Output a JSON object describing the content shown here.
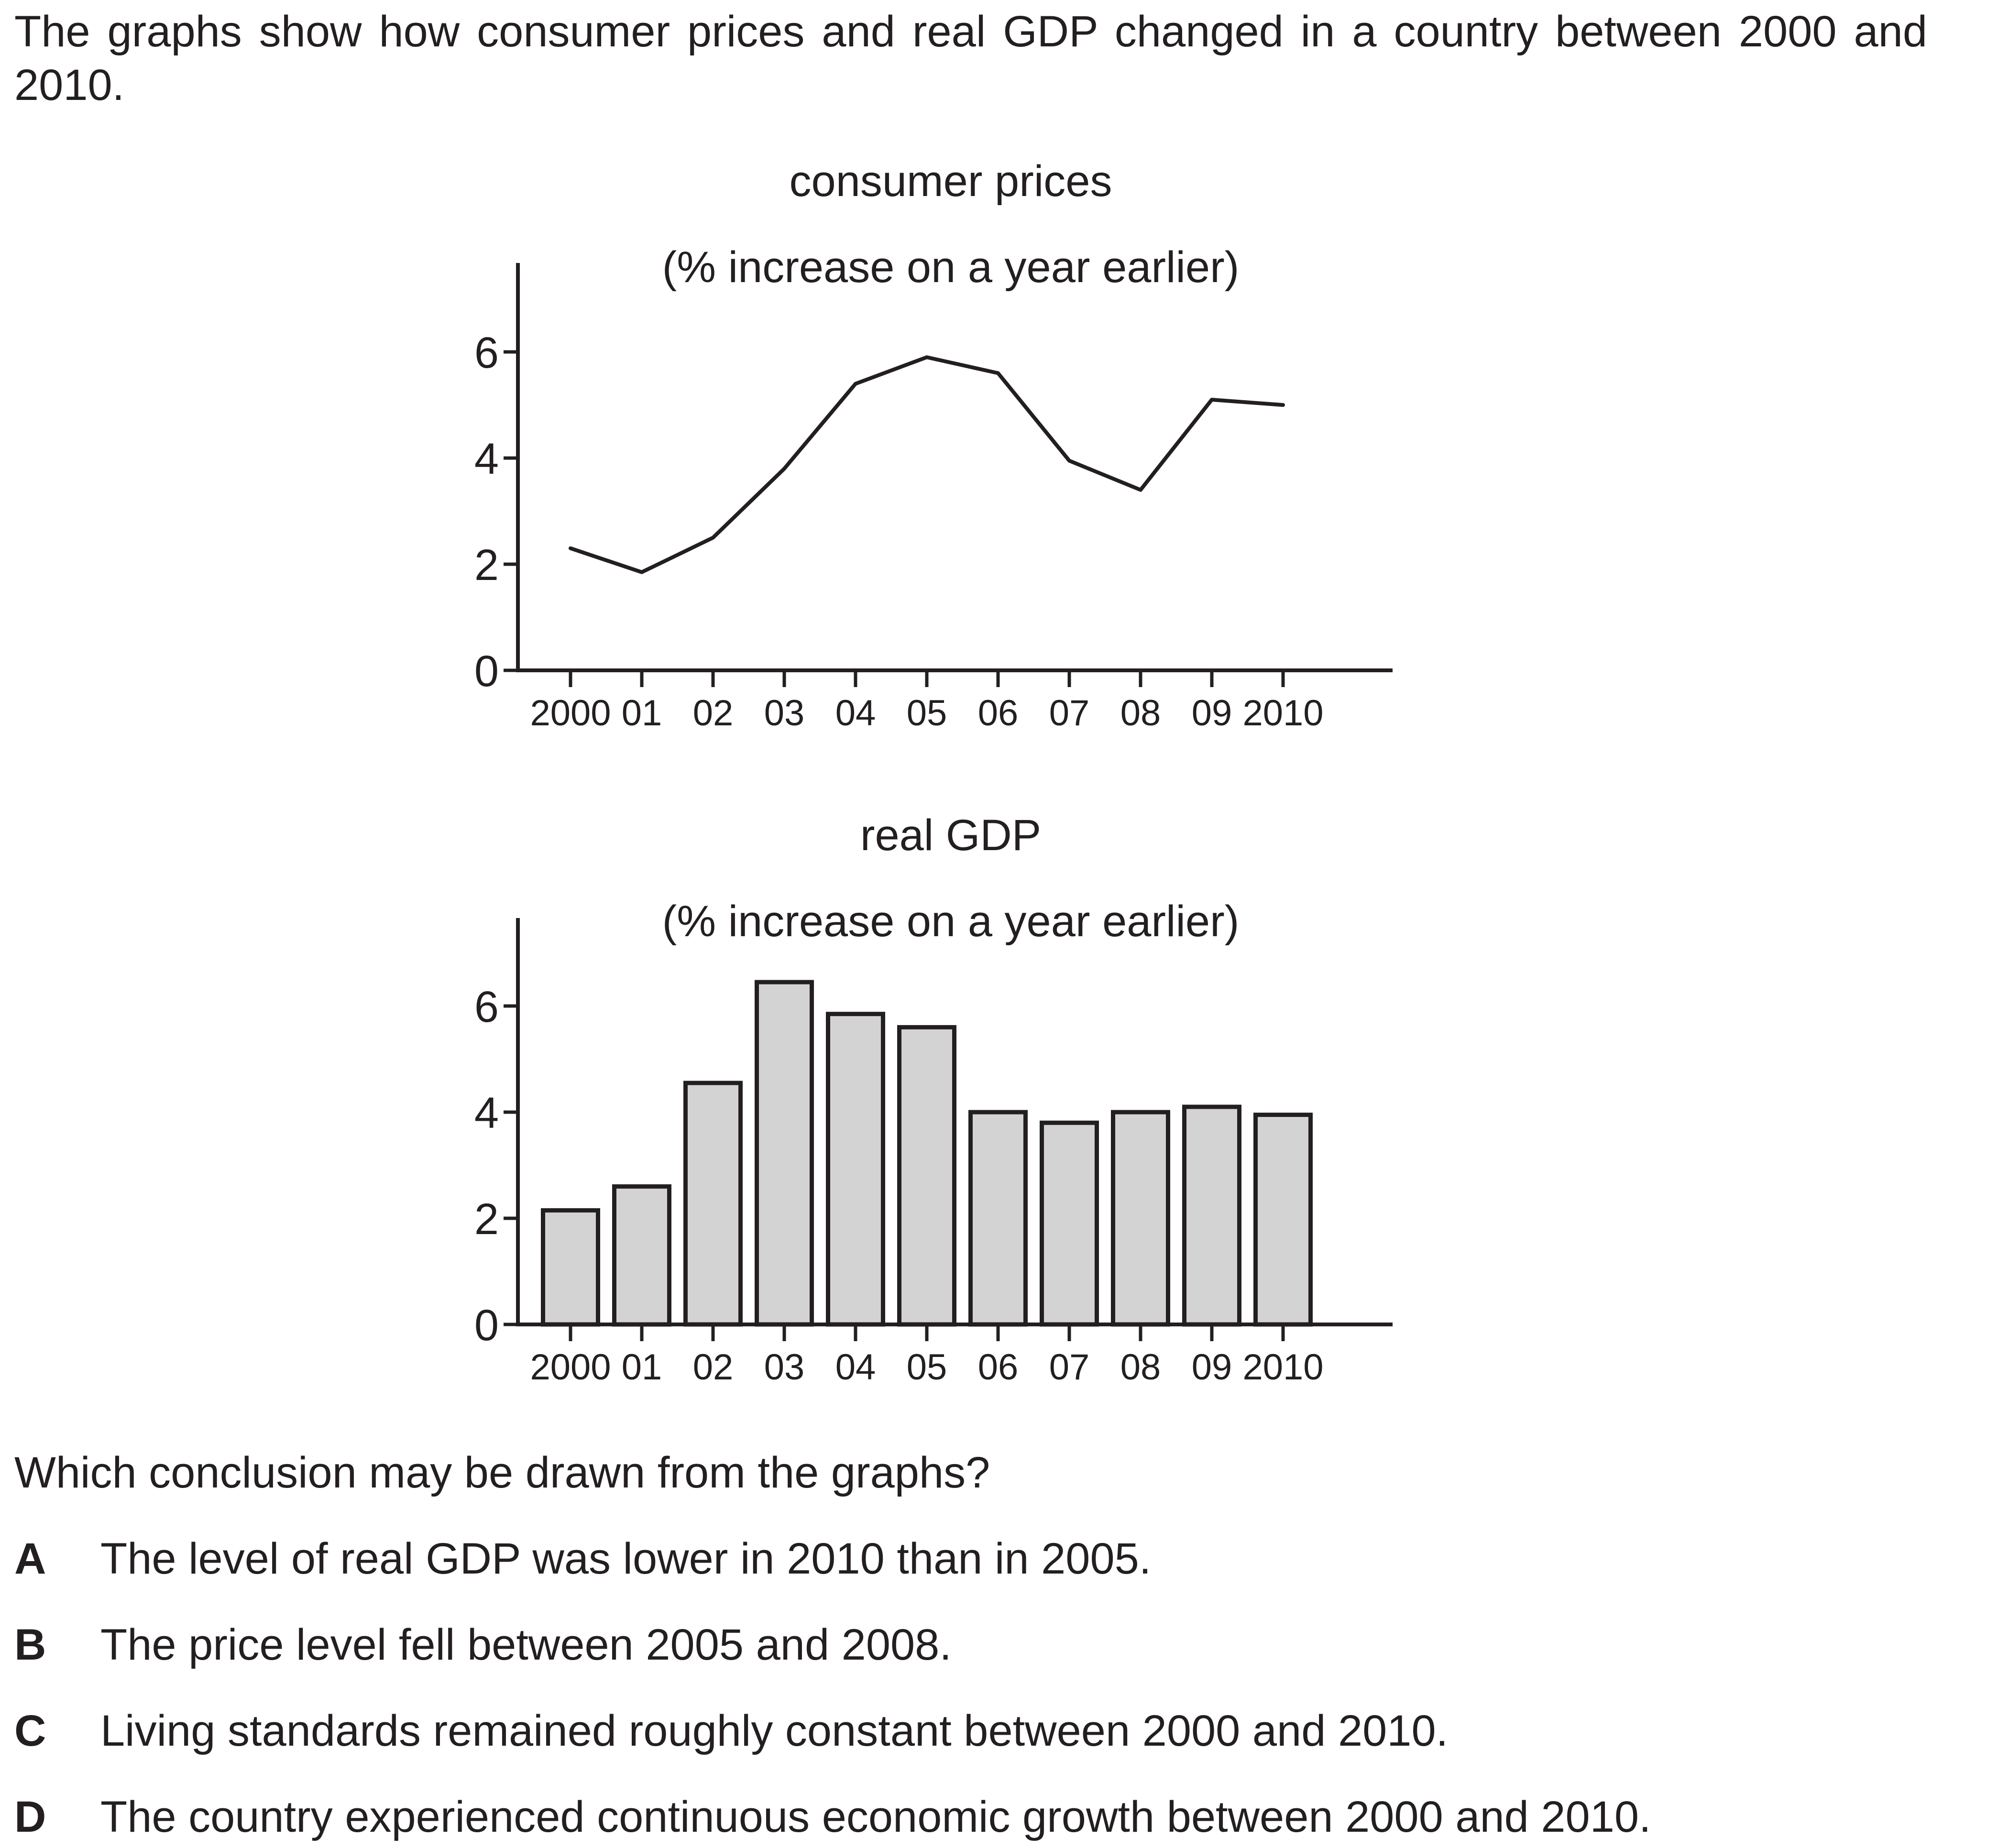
{
  "intro": "The graphs show how consumer prices and real GDP changed in a country between 2000 and 2010.",
  "question": "Which conclusion may be drawn from the graphs?",
  "options": [
    {
      "letter": "A",
      "text": "The level of real GDP was lower in 2010 than in 2005."
    },
    {
      "letter": "B",
      "text": "The price level fell between 2005 and 2008."
    },
    {
      "letter": "C",
      "text": "Living standards remained roughly constant between 2000 and 2010."
    },
    {
      "letter": "D",
      "text": "The country experienced continuous economic growth between 2000 and 2010."
    }
  ],
  "colors": {
    "ink": "#231f20",
    "bar_fill": "#d3d3d3"
  },
  "chart_data": [
    {
      "type": "line",
      "title": "consumer prices",
      "subtitle": "(% increase on a year earlier)",
      "categories": [
        "2000",
        "01",
        "02",
        "03",
        "04",
        "05",
        "06",
        "07",
        "08",
        "09",
        "2010"
      ],
      "values": [
        2.3,
        1.85,
        2.5,
        3.8,
        5.4,
        5.9,
        5.6,
        3.95,
        3.4,
        5.1,
        5.0
      ],
      "y_ticks": [
        "0",
        "2",
        "4",
        "6"
      ],
      "ylim": [
        0,
        7.5
      ],
      "grid": false
    },
    {
      "type": "bar",
      "title": "real GDP",
      "subtitle": "(% increase on a year earlier)",
      "categories": [
        "2000",
        "01",
        "02",
        "03",
        "04",
        "05",
        "06",
        "07",
        "08",
        "09",
        "2010"
      ],
      "values": [
        2.15,
        2.6,
        4.55,
        6.45,
        5.85,
        5.6,
        4.0,
        3.8,
        4.0,
        4.1,
        3.95
      ],
      "y_ticks": [
        "0",
        "2",
        "4",
        "6"
      ],
      "ylim": [
        0,
        7.5
      ],
      "grid": false
    }
  ]
}
